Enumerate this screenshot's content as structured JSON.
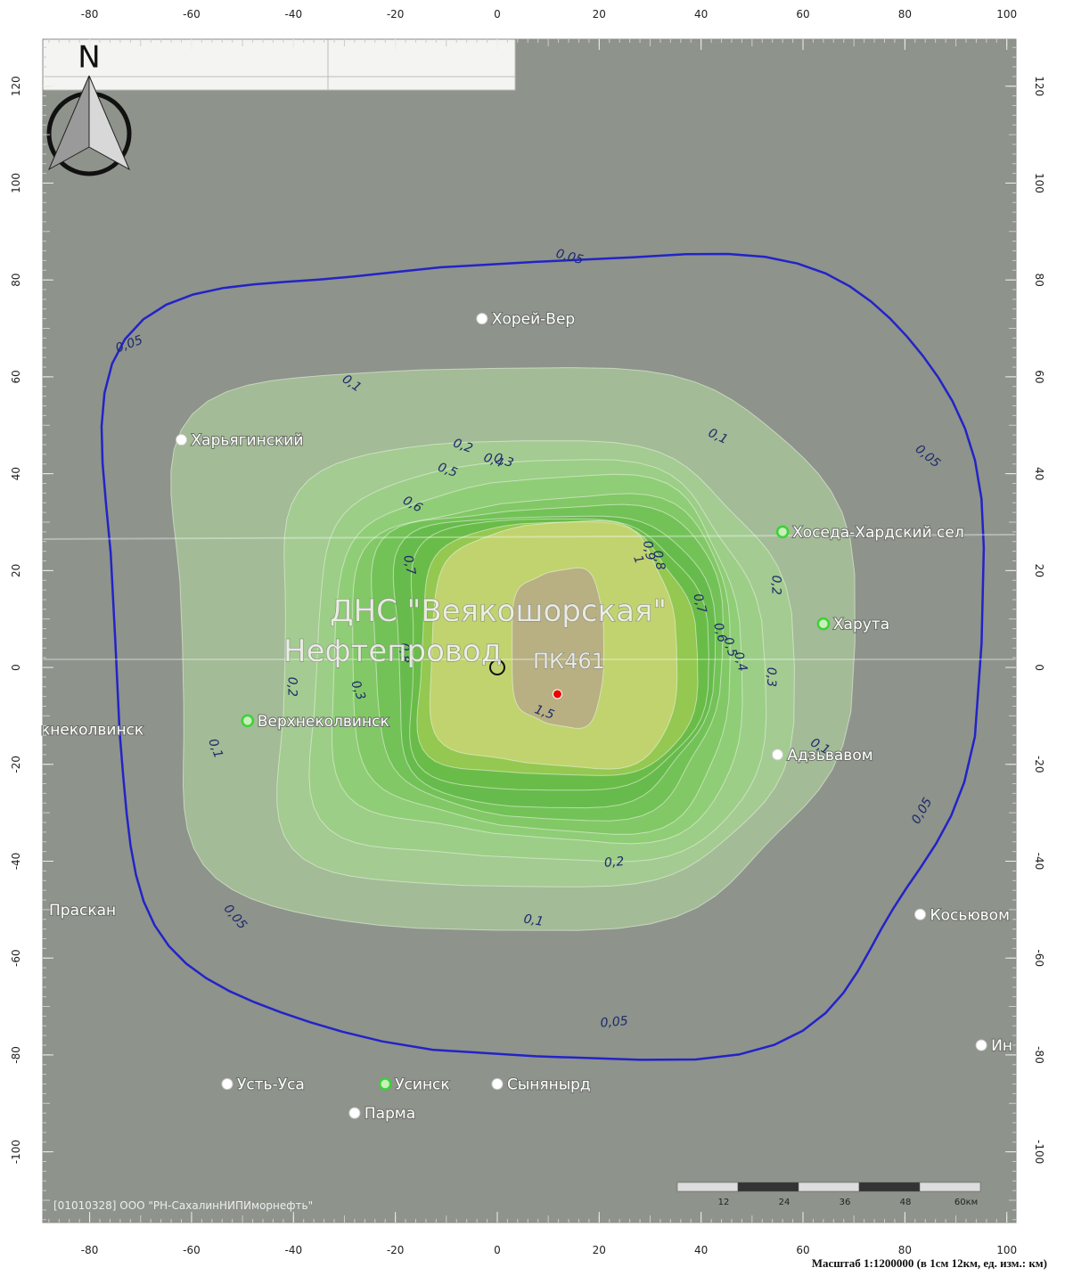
{
  "axes": {
    "x_ticks": [
      -80,
      -60,
      -40,
      -20,
      0,
      20,
      40,
      60,
      80,
      100
    ],
    "y_ticks": [
      120,
      100,
      80,
      60,
      40,
      20,
      0,
      -20,
      -40,
      -60,
      -80,
      -100
    ],
    "xlim": [
      -89.2,
      101.8
    ],
    "ylim": [
      -114.6,
      129.7
    ]
  },
  "compass": "N",
  "objects": {
    "station": "ДНС \"Веякошорская\"",
    "pipeline": "Нефтепровод",
    "picket": "ПК461"
  },
  "settlements": [
    "Хорей-Вер",
    "Харьягинский",
    "Хоседа-Хардский сел",
    "Харута",
    "Верхнеколвинск",
    "кнеколвинск",
    "Адзьвавом",
    "Праскан",
    "Косьювом",
    "Усть-Уса",
    "Усинск",
    "Сынянырд",
    "Парма",
    "Ин"
  ],
  "contour_levels": [
    {
      "value": 0.05,
      "label": "0,05"
    },
    {
      "value": 0.1,
      "label": "0,1"
    },
    {
      "value": 0.2,
      "label": "0,2"
    },
    {
      "value": 0.3,
      "label": "0,3"
    },
    {
      "value": 0.4,
      "label": "0,4"
    },
    {
      "value": 0.5,
      "label": "0,5"
    },
    {
      "value": 0.6,
      "label": "0,6"
    },
    {
      "value": 0.7,
      "label": "0,7"
    },
    {
      "value": 0.8,
      "label": "0,8"
    },
    {
      "value": 0.9,
      "label": "0,9"
    },
    1,
    {
      "value": 1.5,
      "label": "1,5"
    }
  ],
  "credit": "[01010328] ООО \"РН-СахалинНИПИморнефть\"",
  "scale_bar": {
    "ticks": [
      12,
      24,
      36,
      48,
      {
        "value": 60,
        "label": "60км"
      }
    ]
  },
  "scale_caption": "Масштаб 1:1200000 (в 1см 12км, ед. изм.: км)"
}
